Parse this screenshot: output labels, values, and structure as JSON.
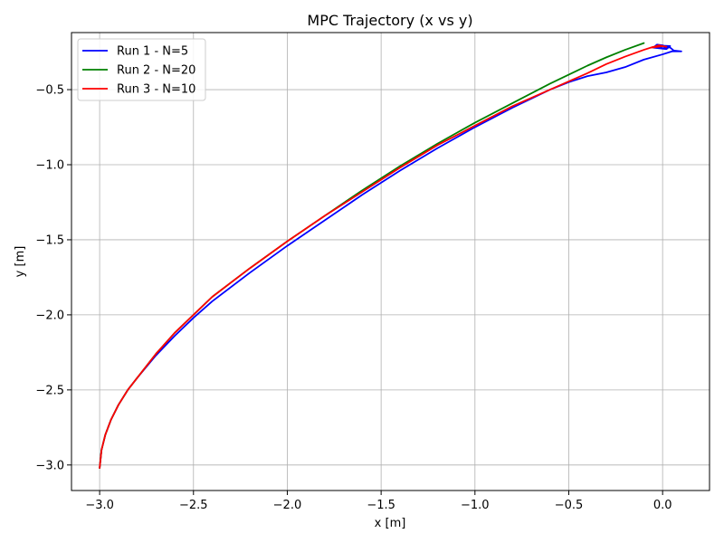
{
  "chart_data": {
    "type": "line",
    "title": "MPC Trajectory (x vs y)",
    "xlabel": "x [m]",
    "ylabel": "y [m]",
    "xlim": [
      -3.15,
      0.25
    ],
    "ylim": [
      -3.17,
      -0.12
    ],
    "xticks": [
      -3.0,
      -2.5,
      -2.0,
      -1.5,
      -1.0,
      -0.5,
      0.0
    ],
    "xtick_labels": [
      "−3.0",
      "−2.5",
      "−2.0",
      "−1.5",
      "−1.0",
      "−0.5",
      "0.0"
    ],
    "yticks": [
      -3.0,
      -2.5,
      -2.0,
      -1.5,
      -1.0,
      -0.5
    ],
    "ytick_labels": [
      "−3.0",
      "−2.5",
      "−2.0",
      "−1.5",
      "−1.0",
      "−0.5"
    ],
    "grid": true,
    "legend_position": "top-left",
    "series": [
      {
        "name": "Run 1 - N=5",
        "color": "#0000ff",
        "x": [
          -3.0,
          -2.99,
          -2.97,
          -2.94,
          -2.9,
          -2.85,
          -2.8,
          -2.7,
          -2.6,
          -2.5,
          -2.4,
          -2.2,
          -2.0,
          -1.8,
          -1.6,
          -1.4,
          -1.2,
          -1.0,
          -0.8,
          -0.6,
          -0.5,
          -0.4,
          -0.3,
          -0.2,
          -0.1,
          0.0,
          0.05,
          0.1,
          0.06,
          0.04,
          0.0,
          -0.03,
          -0.05,
          0.02,
          0.04,
          -0.03,
          0.0,
          0.03
        ],
        "y": [
          -3.02,
          -2.9,
          -2.8,
          -2.7,
          -2.6,
          -2.5,
          -2.42,
          -2.27,
          -2.14,
          -2.02,
          -1.91,
          -1.72,
          -1.54,
          -1.37,
          -1.2,
          -1.04,
          -0.89,
          -0.75,
          -0.62,
          -0.5,
          -0.45,
          -0.41,
          -0.385,
          -0.35,
          -0.3,
          -0.265,
          -0.245,
          -0.245,
          -0.24,
          -0.22,
          -0.205,
          -0.2,
          -0.22,
          -0.23,
          -0.21,
          -0.205,
          -0.225,
          -0.215
        ]
      },
      {
        "name": "Run 2 - N=20",
        "color": "#008000",
        "x": [
          -3.0,
          -2.99,
          -2.97,
          -2.94,
          -2.9,
          -2.85,
          -2.8,
          -2.7,
          -2.6,
          -2.5,
          -2.4,
          -2.2,
          -2.0,
          -1.8,
          -1.6,
          -1.4,
          -1.2,
          -1.0,
          -0.8,
          -0.6,
          -0.4,
          -0.3,
          -0.2,
          -0.1
        ],
        "y": [
          -3.02,
          -2.9,
          -2.8,
          -2.7,
          -2.6,
          -2.5,
          -2.42,
          -2.26,
          -2.12,
          -2.0,
          -1.88,
          -1.69,
          -1.51,
          -1.34,
          -1.17,
          -1.01,
          -0.86,
          -0.72,
          -0.59,
          -0.46,
          -0.34,
          -0.285,
          -0.235,
          -0.19
        ]
      },
      {
        "name": "Run 3 - N=10",
        "color": "#ff0000",
        "x": [
          -3.0,
          -2.99,
          -2.97,
          -2.94,
          -2.9,
          -2.85,
          -2.8,
          -2.7,
          -2.6,
          -2.5,
          -2.4,
          -2.2,
          -2.0,
          -1.8,
          -1.6,
          -1.4,
          -1.2,
          -1.0,
          -0.8,
          -0.6,
          -0.4,
          -0.3,
          -0.2,
          -0.1,
          -0.05,
          0.0,
          -0.06,
          -0.02,
          0.02
        ],
        "y": [
          -3.02,
          -2.9,
          -2.8,
          -2.7,
          -2.6,
          -2.5,
          -2.42,
          -2.26,
          -2.12,
          -2.0,
          -1.88,
          -1.69,
          -1.51,
          -1.34,
          -1.18,
          -1.02,
          -0.87,
          -0.74,
          -0.61,
          -0.5,
          -0.39,
          -0.33,
          -0.28,
          -0.235,
          -0.215,
          -0.21,
          -0.22,
          -0.205,
          -0.215
        ]
      }
    ]
  }
}
